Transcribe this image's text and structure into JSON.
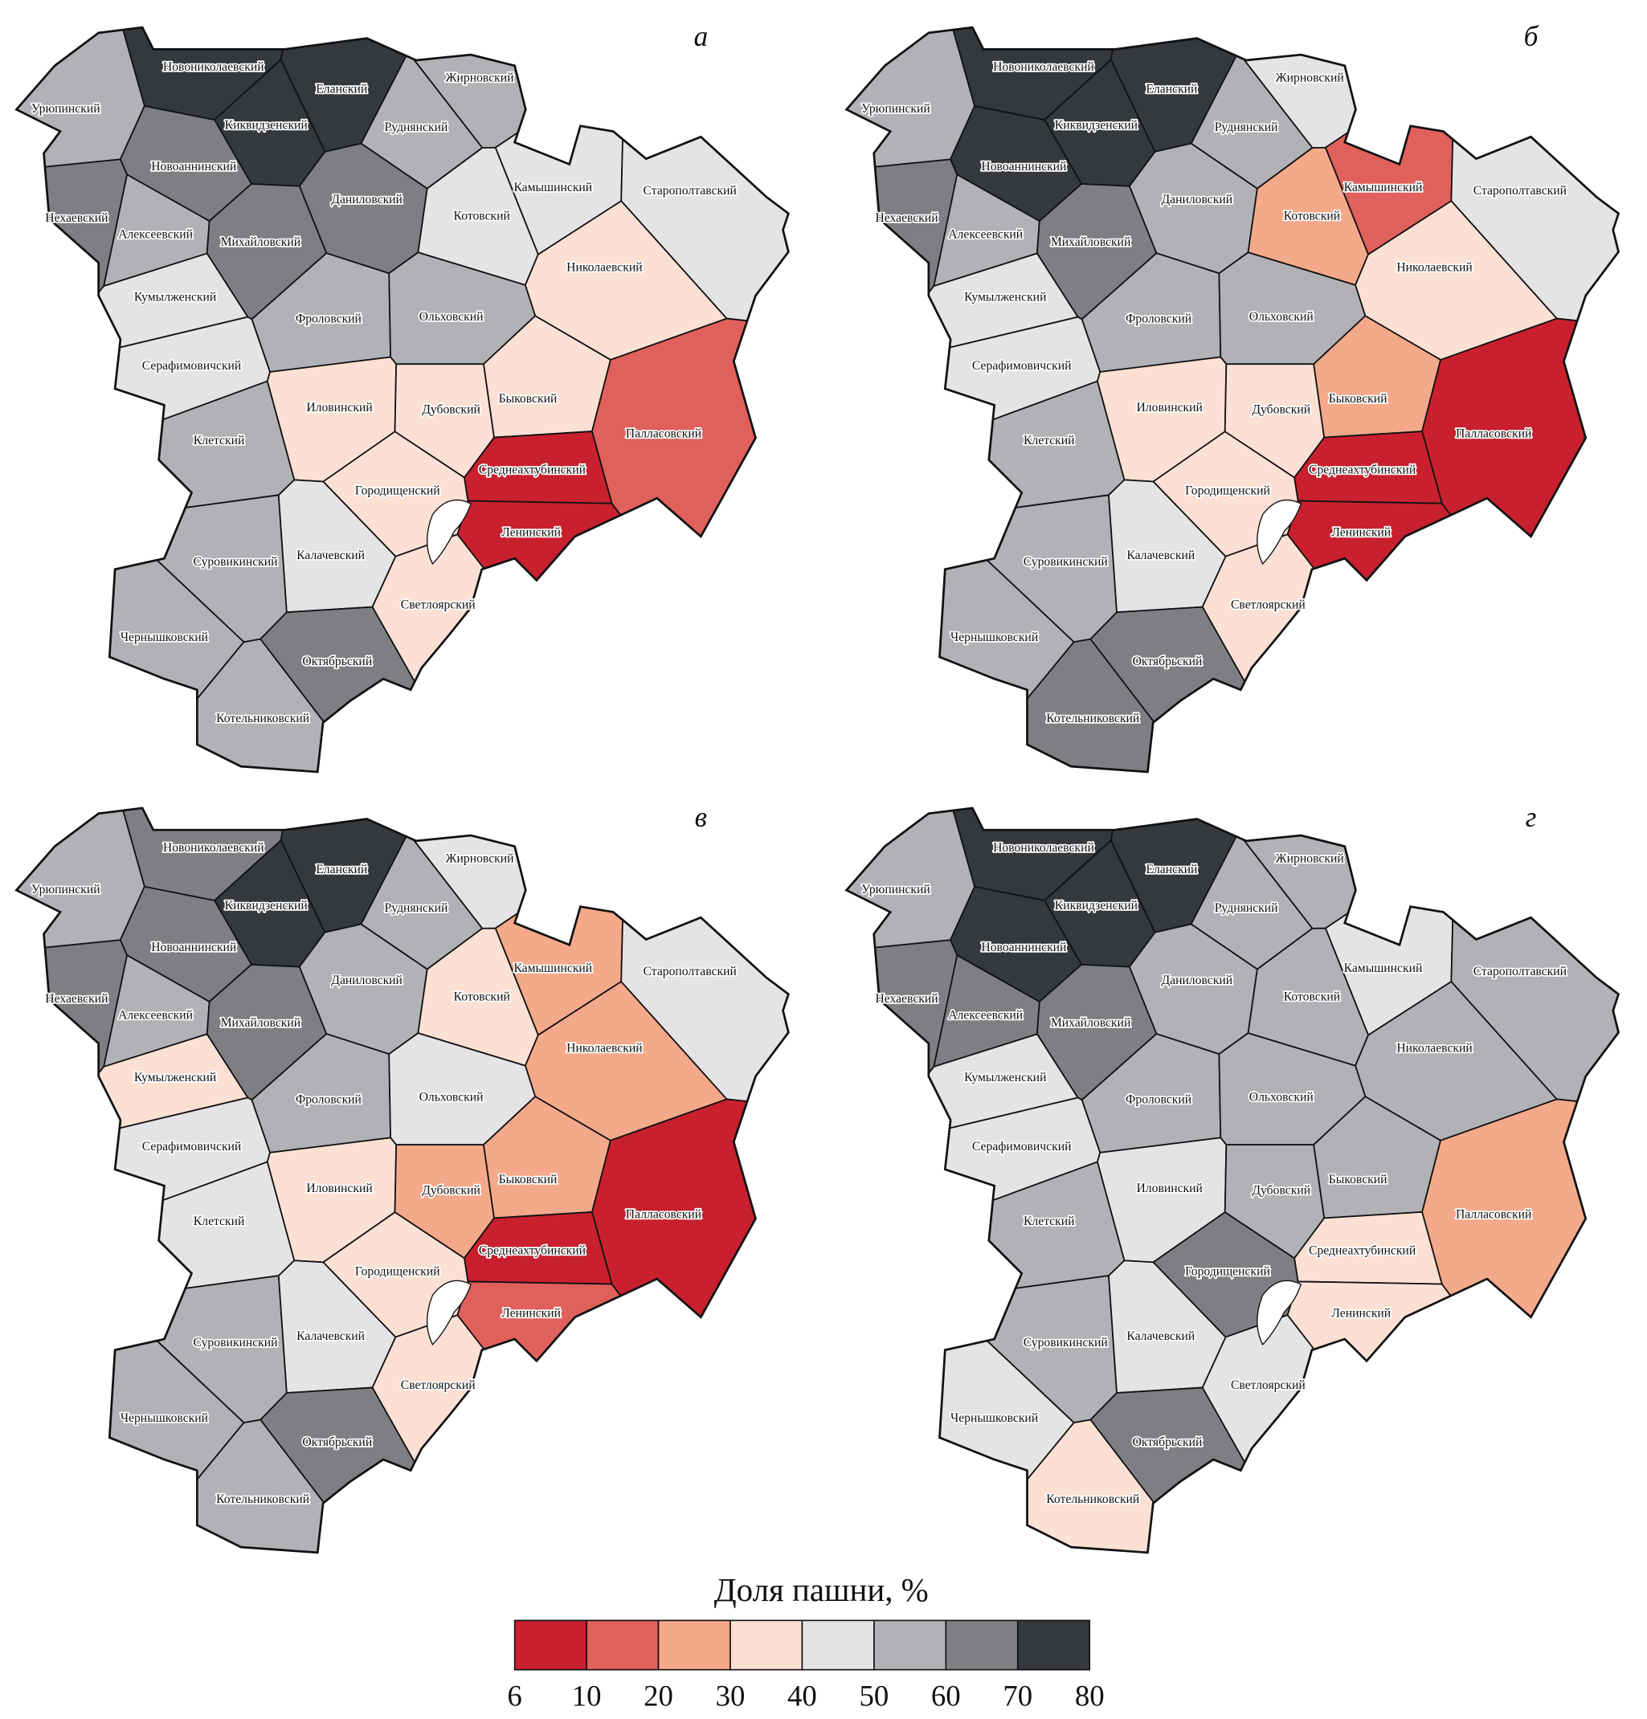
{
  "districts": [
    "Новониколаевский",
    "Еланский",
    "Жирновский",
    "Урюпинский",
    "Киквидзенский",
    "Руднянский",
    "Новоаннинский",
    "Камышинский",
    "Старополтавский",
    "Нехаевский",
    "Алексеевский",
    "Даниловский",
    "Котовский",
    "Михайловский",
    "Николаевский",
    "Кумылженский",
    "Фроловский",
    "Ольховский",
    "Серафимовичский",
    "Иловинский",
    "Дубовский",
    "Быковский",
    "Палласовский",
    "Клетский",
    "Среднеахтубинский",
    "Городищенский",
    "Ленинский",
    "Суровикинский",
    "Калачевский",
    "Светлоярский",
    "Чернышковский",
    "Октябрьский",
    "Котельниковский"
  ],
  "panels": [
    {
      "label": "а",
      "colors": [
        "#35383c",
        "#35383c",
        "#b0b2b5",
        "#b0b2b5",
        "#35383c",
        "#b0b2b5",
        "#7d7f83",
        "#e4e4e6",
        "#e4e4e6",
        "#7d7f83",
        "#b0b2b5",
        "#7d7f83",
        "#e4e4e6",
        "#7d7f83",
        "#fde0d4",
        "#e4e4e6",
        "#b0b2b5",
        "#b0b2b5",
        "#e4e4e6",
        "#fde0d4",
        "#fde0d4",
        "#fde0d4",
        "#e0605c",
        "#b0b2b5",
        "#c8202e",
        "#fde0d4",
        "#c8202e",
        "#b0b2b5",
        "#e4e4e6",
        "#fde0d4",
        "#b0b2b5",
        "#7d7f83",
        "#b0b2b5"
      ]
    },
    {
      "label": "б",
      "colors": [
        "#35383c",
        "#35383c",
        "#e4e4e6",
        "#b0b2b5",
        "#35383c",
        "#b0b2b5",
        "#35383c",
        "#e0605c",
        "#e4e4e6",
        "#7d7f83",
        "#b0b2b5",
        "#b0b2b5",
        "#f4a98a",
        "#7d7f83",
        "#fde0d4",
        "#e4e4e6",
        "#b0b2b5",
        "#b0b2b5",
        "#e4e4e6",
        "#fde0d4",
        "#fde0d4",
        "#f4a98a",
        "#c8202e",
        "#b0b2b5",
        "#c8202e",
        "#fde0d4",
        "#c8202e",
        "#b0b2b5",
        "#e4e4e6",
        "#fde0d4",
        "#b0b2b5",
        "#7d7f83",
        "#7d7f83"
      ]
    },
    {
      "label": "в",
      "colors": [
        "#7d7f83",
        "#35383c",
        "#e4e4e6",
        "#b0b2b5",
        "#35383c",
        "#b0b2b5",
        "#7d7f83",
        "#f4a98a",
        "#e4e4e6",
        "#7d7f83",
        "#b0b2b5",
        "#b0b2b5",
        "#fde0d4",
        "#7d7f83",
        "#f4a98a",
        "#fde0d4",
        "#b0b2b5",
        "#e4e4e6",
        "#e4e4e6",
        "#fde0d4",
        "#f4a98a",
        "#f4a98a",
        "#c8202e",
        "#e4e4e6",
        "#c8202e",
        "#fde0d4",
        "#e0605c",
        "#b0b2b5",
        "#e4e4e6",
        "#fde0d4",
        "#b0b2b5",
        "#7d7f83",
        "#b0b2b5"
      ]
    },
    {
      "label": "г",
      "colors": [
        "#35383c",
        "#35383c",
        "#b0b2b5",
        "#b0b2b5",
        "#35383c",
        "#b0b2b5",
        "#35383c",
        "#e4e4e6",
        "#b0b2b5",
        "#7d7f83",
        "#7d7f83",
        "#b0b2b5",
        "#b0b2b5",
        "#7d7f83",
        "#b0b2b5",
        "#e4e4e6",
        "#b0b2b5",
        "#b0b2b5",
        "#e4e4e6",
        "#e4e4e6",
        "#b0b2b5",
        "#b0b2b5",
        "#f4a98a",
        "#b0b2b5",
        "#fde0d4",
        "#7d7f83",
        "#fde0d4",
        "#b0b2b5",
        "#e4e4e6",
        "#e4e4e6",
        "#e4e4e6",
        "#7d7f83",
        "#fde0d4"
      ]
    }
  ],
  "legend": {
    "title": "Доля пашни, %",
    "ticks": [
      6,
      10,
      20,
      30,
      40,
      50,
      60,
      70,
      80
    ],
    "colors": [
      "#c8202e",
      "#e0605c",
      "#f4a98a",
      "#fde0d4",
      "#e4e4e6",
      "#b0b2b5",
      "#7d7f83",
      "#35383c"
    ]
  }
}
